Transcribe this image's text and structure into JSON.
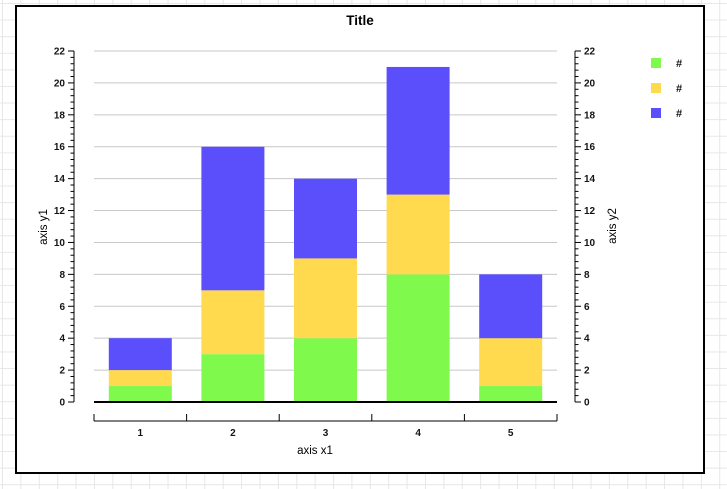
{
  "chart_data": {
    "type": "bar",
    "stacked": true,
    "title": "Title",
    "xlabel": "axis x1",
    "ylabel_left": "axis y1",
    "ylabel_right": "axis y2",
    "categories": [
      "1",
      "2",
      "3",
      "4",
      "5"
    ],
    "series": [
      {
        "name": "#",
        "color": "#80F94D",
        "values": [
          1,
          3,
          4,
          8,
          1
        ]
      },
      {
        "name": "#",
        "color": "#FFD94E",
        "values": [
          1,
          4,
          5,
          5,
          3
        ]
      },
      {
        "name": "#",
        "color": "#5B4EFB",
        "values": [
          2,
          9,
          5,
          8,
          4
        ]
      }
    ],
    "stack_totals": [
      4,
      16,
      14,
      21,
      8
    ],
    "ylim": [
      0,
      22
    ],
    "yticks": [
      0,
      2,
      4,
      6,
      8,
      10,
      12,
      14,
      16,
      18,
      20,
      22
    ],
    "ytick_labels": [
      "0",
      "2",
      "4",
      "6",
      "8",
      "10",
      "12",
      "14",
      "16",
      "18",
      "20",
      "22"
    ],
    "y_minor_step": 0.4,
    "grid": true,
    "legend_position": "upper-right",
    "legend_labels": [
      "#",
      "#",
      "#"
    ],
    "colors": {
      "gridline": "#c8c8c8",
      "axis": "#000000",
      "tick_text": "#141414",
      "baseline": "#000000",
      "chart_background": "#ffffff",
      "page_grid": "#e7e7e7"
    }
  }
}
